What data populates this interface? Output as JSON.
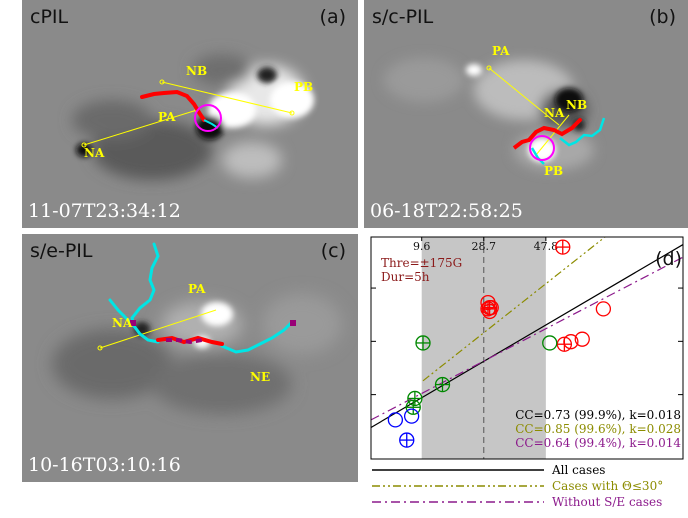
{
  "panels": [
    {
      "id": "a",
      "title": "cPIL",
      "label": "(a)",
      "timestamp": "11-07T23:34:12",
      "regions": [
        "NB",
        "PB",
        "PA",
        "NA"
      ]
    },
    {
      "id": "b",
      "title": "s/c-PIL",
      "label": "(b)",
      "timestamp": "06-18T22:58:25",
      "regions": [
        "PA",
        "NA",
        "NB",
        "PB"
      ]
    },
    {
      "id": "c",
      "title": "s/e-PIL",
      "label": "(c)",
      "timestamp": "10-16T03:10:16",
      "regions": [
        "PA",
        "NA",
        "NE"
      ]
    }
  ],
  "colors": {
    "pil_red": "#ff0000",
    "pil_cyan": "#00e5e5",
    "pil_purple": "#990077",
    "circle_magenta": "#ff00ff",
    "label_yellow": "#ffff00",
    "shade": "#c6c6c6"
  },
  "chart_data": {
    "type": "scatter",
    "label": "(d)",
    "x_ticks": [
      "9.6",
      "28.7",
      "47.8"
    ],
    "annotations": [
      "Thre=±175G",
      "Dur=5h"
    ],
    "stats": [
      {
        "text": "CC=0.73 (99.9%), k=0.018",
        "color": "#000000"
      },
      {
        "text": "CC=0.85 (99.6%), k=0.028",
        "color": "#8c8c00"
      },
      {
        "text": "CC=0.64 (99.4%), k=0.014",
        "color": "#8c1a8c"
      }
    ],
    "legend": [
      {
        "text": "All cases",
        "color": "#000000",
        "dash": ""
      },
      {
        "text": "Cases with Θ≤30°",
        "color": "#8c8c00",
        "dash": "8,3,2,3,2,3"
      },
      {
        "text": "Without S/E cases",
        "color": "#8c1a8c",
        "dash": "9,4,2,4"
      }
    ],
    "points": [
      {
        "x": 53.0,
        "y": 0.96,
        "color": "#ff0000",
        "cross": true
      },
      {
        "x": 30.0,
        "y": 0.74,
        "color": "#ff0000",
        "cross": false
      },
      {
        "x": 30.5,
        "y": 0.72,
        "color": "#ff0000",
        "cross": true
      },
      {
        "x": 30.0,
        "y": 0.715,
        "color": "#ff0000",
        "cross": true
      },
      {
        "x": 31.0,
        "y": 0.72,
        "color": "#ff0000",
        "cross": false
      },
      {
        "x": 30.5,
        "y": 0.705,
        "color": "#ff0000",
        "cross": false
      },
      {
        "x": 65.5,
        "y": 0.715,
        "color": "#ff0000",
        "cross": false
      },
      {
        "x": 59.0,
        "y": 0.595,
        "color": "#ff0000",
        "cross": false
      },
      {
        "x": 55.5,
        "y": 0.585,
        "color": "#ff0000",
        "cross": false
      },
      {
        "x": 53.5,
        "y": 0.575,
        "color": "#ff0000",
        "cross": true
      },
      {
        "x": 49.0,
        "y": 0.58,
        "color": "#008800",
        "cross": false
      },
      {
        "x": 10.0,
        "y": 0.58,
        "color": "#008800",
        "cross": true
      },
      {
        "x": 16.0,
        "y": 0.415,
        "color": "#008800",
        "cross": true
      },
      {
        "x": 7.5,
        "y": 0.36,
        "color": "#008800",
        "cross": true
      },
      {
        "x": 7.0,
        "y": 0.325,
        "color": "#008800",
        "cross": true
      },
      {
        "x": 1.5,
        "y": 0.275,
        "color": "#0000ff",
        "cross": false
      },
      {
        "x": 6.5,
        "y": 0.29,
        "color": "#0000ff",
        "cross": false
      },
      {
        "x": 5.0,
        "y": 0.195,
        "color": "#0000ff",
        "cross": true
      }
    ]
  }
}
